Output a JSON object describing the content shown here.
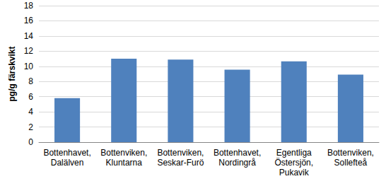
{
  "chart_data": {
    "type": "bar",
    "y_label": "pg/g färskvikt",
    "categories": [
      "Bottenhavet,\nDalälven",
      "Bottenviken,\nKluntarna",
      "Bottenviken,\nSeskar-Furö",
      "Bottenhavet,\nNordingrå",
      "Egentliga\nÖstersjön,\nPukavik",
      "Bottenviken,\nSollefteå"
    ],
    "values": [
      5.8,
      11.0,
      10.9,
      9.55,
      10.65,
      8.9
    ],
    "color": "#4f81bd",
    "ylim": [
      0,
      18
    ],
    "yticks": [
      0,
      2,
      4,
      6,
      8,
      10,
      12,
      14,
      16,
      18
    ],
    "grid": true
  }
}
